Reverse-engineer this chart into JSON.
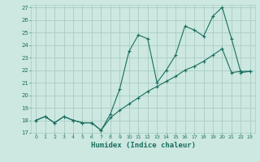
{
  "xlabel": "Humidex (Indice chaleur)",
  "background_color": "#cce8e0",
  "grid_color": "#aaccc4",
  "line_color": "#1a6e60",
  "xlim": [
    -0.5,
    23.5
  ],
  "ylim": [
    17,
    27.2
  ],
  "yticks": [
    17,
    18,
    19,
    20,
    21,
    22,
    23,
    24,
    25,
    26,
    27
  ],
  "xticks": [
    0,
    1,
    2,
    3,
    4,
    5,
    6,
    7,
    8,
    9,
    10,
    11,
    12,
    13,
    14,
    15,
    16,
    17,
    18,
    19,
    20,
    21,
    22,
    23
  ],
  "series1_x": [
    0,
    1,
    2,
    3,
    4,
    5,
    6,
    7,
    8,
    9,
    10,
    11,
    12,
    13,
    14,
    15,
    16,
    17,
    18,
    19,
    20,
    21,
    22,
    23
  ],
  "series1_y": [
    18.0,
    18.3,
    17.8,
    18.3,
    18.0,
    17.8,
    17.8,
    17.2,
    18.5,
    20.5,
    23.5,
    24.8,
    24.5,
    21.0,
    22.0,
    23.2,
    25.5,
    25.2,
    24.7,
    26.3,
    27.0,
    24.5,
    21.8,
    21.9
  ],
  "series2_x": [
    0,
    1,
    2,
    3,
    4,
    5,
    6,
    7,
    8,
    9,
    10,
    11,
    12,
    13,
    14,
    15,
    16,
    17,
    18,
    19,
    20,
    21,
    22,
    23
  ],
  "series2_y": [
    18.0,
    18.3,
    17.8,
    18.3,
    18.0,
    17.8,
    17.8,
    17.2,
    18.2,
    18.8,
    19.3,
    19.8,
    20.3,
    20.7,
    21.1,
    21.5,
    22.0,
    22.3,
    22.7,
    23.2,
    23.7,
    21.8,
    21.9,
    21.9
  ]
}
